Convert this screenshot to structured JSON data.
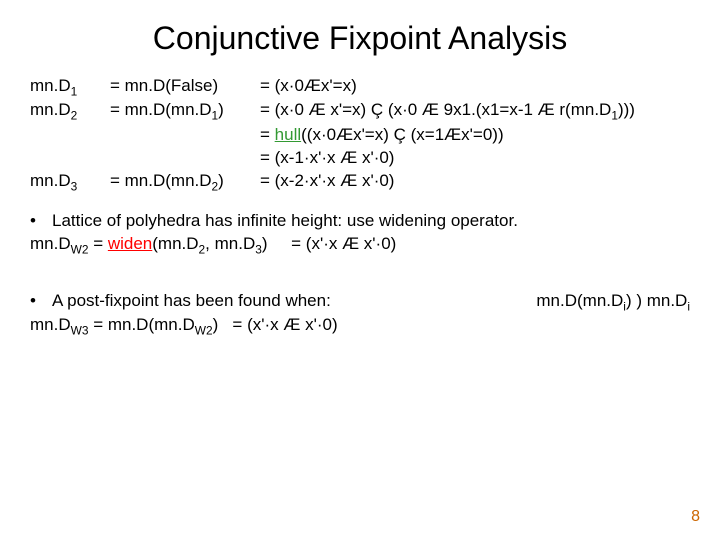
{
  "title": "Conjunctive Fixpoint Analysis",
  "rows": [
    {
      "c1": "mn.D",
      "s1": "1",
      "c2": "= mn.D(False)",
      "c3": "= (x·0Æx'=x)"
    },
    {
      "c1": "mn.D",
      "s1": "2",
      "c2a": "= mn.D(mn.D",
      "s2": "1",
      "c2b": ")",
      "c3a": "= (x·0 Æ x'=x) Ç (x·0 Æ 9x1.(x1=x-1 Æ r(mn.D",
      "s3": "1",
      "c3b": ")))"
    },
    {
      "c3_hull_pre": "= ",
      "c3_hull": "hull",
      "c3_hull_post": "((x·0Æx'=x) Ç (x=1Æx'=0))"
    },
    {
      "c3": "= (x-1·x'·x Æ x'·0)"
    },
    {
      "c1": "mn.D",
      "s1": "3",
      "c2a": "= mn.D(mn.D",
      "s2": "2",
      "c2b": ")",
      "c3": "= (x-2·x'·x Æ x'·0)"
    }
  ],
  "bullet1": "Lattice of polyhedra has infinite height: use widening operator.",
  "widenline_pre": "mn.D",
  "widenline_sub1": "W2",
  "widenline_mid1": " = ",
  "widenline_widen": "widen",
  "widenline_mid2": "(mn.D",
  "widenline_sub2": "2",
  "widenline_mid3": ", mn.D",
  "widenline_sub3": "3",
  "widenline_mid4": ")     = (x'·x Æ x'·0)",
  "bullet2_left": "A post-fixpoint has been found when:",
  "bullet2_right_a": "mn.D(mn.D",
  "bullet2_right_sub": "i",
  "bullet2_right_b": ") ) mn.D",
  "bullet2_right_sub2": "i",
  "lastline_a": "mn.D",
  "lastline_sub1": "W3",
  "lastline_b": " = mn.D(mn.D",
  "lastline_sub2": "W2",
  "lastline_c": ")   = (x'·x Æ x'·0)",
  "slidenum": "8",
  "colors": {
    "hull": "#339933",
    "widen": "#ff0000",
    "slidenum": "#cc6600",
    "text": "#000000",
    "bg": "#ffffff"
  },
  "fontsizes": {
    "title": 32,
    "body": 17
  }
}
